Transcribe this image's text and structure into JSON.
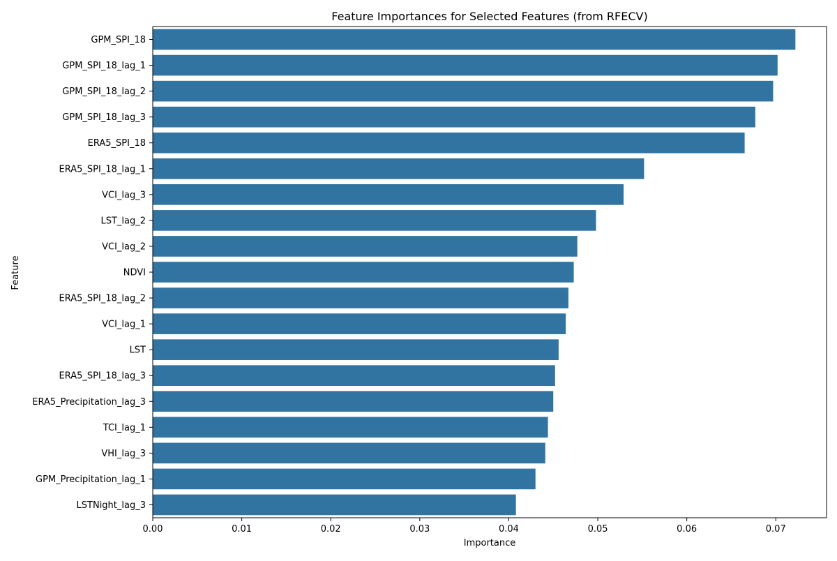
{
  "chart_data": {
    "type": "bar",
    "orientation": "horizontal",
    "title": "Feature Importances for Selected Features (from RFECV)",
    "xlabel": "Importance",
    "ylabel": "Feature",
    "xlim": [
      0,
      0.0757
    ],
    "xticks": [
      "0.00",
      "0.01",
      "0.02",
      "0.03",
      "0.04",
      "0.05",
      "0.06",
      "0.07"
    ],
    "grid": false,
    "legend": "none",
    "bar_color": "#3274a1",
    "categories": [
      "GPM_SPI_18",
      "GPM_SPI_18_lag_1",
      "GPM_SPI_18_lag_2",
      "GPM_SPI_18_lag_3",
      "ERA5_SPI_18",
      "ERA5_SPI_18_lag_1",
      "VCI_lag_3",
      "LST_lag_2",
      "VCI_lag_2",
      "NDVI",
      "ERA5_SPI_18_lag_2",
      "VCI_lag_1",
      "LST",
      "ERA5_SPI_18_lag_3",
      "ERA5_Precipitation_lag_3",
      "TCI_lag_1",
      "VHI_lag_3",
      "GPM_Precipitation_lag_1",
      "LSTNight_lag_3"
    ],
    "values": [
      0.0722,
      0.0702,
      0.0697,
      0.0677,
      0.0665,
      0.0552,
      0.0529,
      0.0498,
      0.0477,
      0.0473,
      0.0467,
      0.0464,
      0.0456,
      0.0452,
      0.045,
      0.0444,
      0.0441,
      0.043,
      0.0408
    ]
  }
}
